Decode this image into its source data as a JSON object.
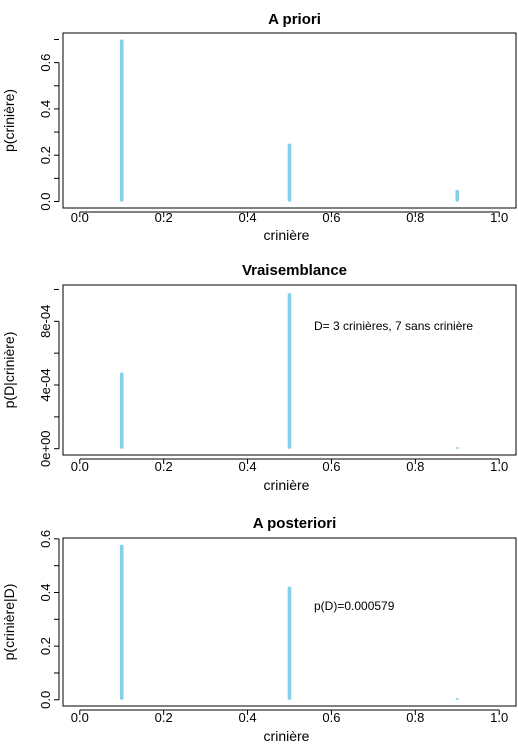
{
  "chart_data": [
    {
      "type": "bar",
      "title": "A priori",
      "xlabel": "crinière",
      "ylabel": "p(crinière)",
      "xlim": [
        -0.04,
        1.04
      ],
      "ylim": [
        -0.028,
        0.728
      ],
      "xticks": [
        0.0,
        0.2,
        0.4,
        0.6,
        0.8,
        1.0
      ],
      "xtick_labels": [
        "0.0",
        "0.2",
        "0.4",
        "0.6",
        "0.8",
        "1.0"
      ],
      "yticks": [
        0.0,
        0.2,
        0.4,
        0.6
      ],
      "ytick_labels": [
        "0.0",
        "0.2",
        "0.4",
        "0.6"
      ],
      "x": [
        0.1,
        0.5,
        0.9
      ],
      "values": [
        0.7,
        0.25,
        0.05
      ],
      "bar_color": "#87ceeb",
      "annotation": ""
    },
    {
      "type": "bar",
      "title": "Vraisemblance",
      "xlabel": "crinière",
      "ylabel": "p(D|crinière)",
      "xlim": [
        -0.04,
        1.04
      ],
      "ylim": [
        -3.95e-05,
        0.001028
      ],
      "xticks": [
        0.0,
        0.2,
        0.4,
        0.6,
        0.8,
        1.0
      ],
      "xtick_labels": [
        "0.0",
        "0.2",
        "0.4",
        "0.6",
        "0.8",
        "1.0"
      ],
      "yticks": [
        0.0,
        0.0004,
        0.0008
      ],
      "ytick_labels": [
        "0e+00",
        "4e-04",
        "8e-04"
      ],
      "x": [
        0.1,
        0.5,
        0.9
      ],
      "values": [
        0.000478,
        0.000977,
        8.1e-06
      ],
      "bar_color": "#87ceeb",
      "annotation": "D= 3 crinières, 7 sans crinière"
    },
    {
      "type": "bar",
      "title": "A posteriori",
      "xlabel": "crinière",
      "ylabel": "p(crinière|D)",
      "xlim": [
        -0.04,
        1.04
      ],
      "ylim": [
        -0.0232,
        0.6032
      ],
      "xticks": [
        0.0,
        0.2,
        0.4,
        0.6,
        0.8,
        1.0
      ],
      "xtick_labels": [
        "0.0",
        "0.2",
        "0.4",
        "0.6",
        "0.8",
        "1.0"
      ],
      "yticks": [
        0.0,
        0.2,
        0.4,
        0.6
      ],
      "ytick_labels": [
        "0.0",
        "0.2",
        "0.4",
        "0.6"
      ],
      "x": [
        0.1,
        0.5,
        0.9
      ],
      "values": [
        0.578,
        0.422,
        0.0007
      ],
      "bar_color": "#87ceeb",
      "annotation": "p(D)=0.000579"
    }
  ]
}
